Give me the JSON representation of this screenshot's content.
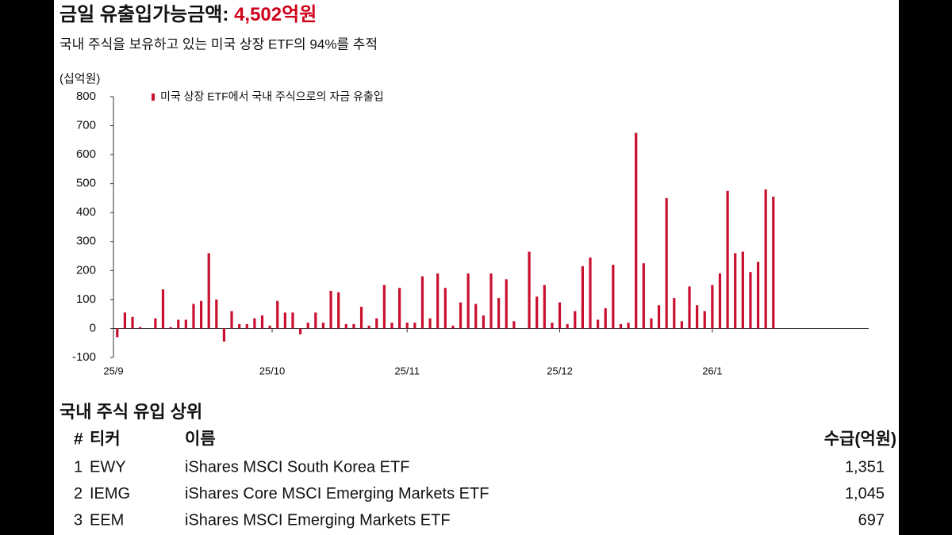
{
  "header": {
    "title": "금일 유출입가능금액: ",
    "highlight": "4,502억원",
    "subtitle": "국내 주식을 보유하고 있는 미국 상장 ETF의 94%를 추적"
  },
  "chart_data": {
    "type": "bar",
    "y_label": "(십억원)",
    "x": [
      0,
      1,
      2,
      3,
      5,
      6,
      7,
      8,
      9,
      10,
      11,
      12,
      13,
      14,
      15,
      16,
      17,
      18,
      19,
      20,
      21,
      22,
      23,
      24,
      25,
      26,
      27,
      28,
      29,
      30,
      31,
      32,
      33,
      34,
      35,
      36,
      37,
      38,
      39,
      40,
      41,
      42,
      43,
      44,
      45,
      46,
      47,
      48,
      49,
      50,
      51,
      52,
      54,
      55,
      56,
      57,
      58,
      59,
      60,
      61,
      62,
      63,
      64,
      65,
      66,
      67,
      68,
      69,
      70,
      71,
      72,
      73,
      74,
      75,
      76,
      77,
      78,
      79,
      80,
      81,
      82,
      83,
      84,
      85,
      86
    ],
    "series": [
      {
        "name": "미국 상장 ETF에서 국내 주식으로의 자금 유출입",
        "color": "#c8102e",
        "values": [
          -30,
          55,
          40,
          5,
          35,
          135,
          5,
          30,
          30,
          85,
          95,
          260,
          100,
          -45,
          60,
          15,
          15,
          35,
          45,
          10,
          95,
          55,
          55,
          -20,
          20,
          55,
          20,
          130,
          125,
          15,
          15,
          75,
          10,
          35,
          150,
          20,
          140,
          20,
          20,
          180,
          35,
          190,
          140,
          10,
          90,
          190,
          85,
          45,
          190,
          105,
          170,
          25,
          265,
          110,
          150,
          20,
          90,
          15,
          60,
          215,
          245,
          30,
          70,
          220,
          15,
          20,
          675,
          225,
          35,
          80,
          450,
          105,
          25,
          145,
          80,
          60,
          150,
          190,
          475,
          260,
          265,
          195,
          230,
          480,
          455
        ]
      }
    ],
    "xlim": [
      -0.5,
      98.5
    ],
    "xticks": [
      {
        "value": -0.5,
        "label": "25/9"
      },
      {
        "value": 20.3,
        "label": "25/10"
      },
      {
        "value": 38,
        "label": "25/11"
      },
      {
        "value": 58,
        "label": "25/12"
      },
      {
        "value": 78,
        "label": "26/1"
      }
    ],
    "ylim": [
      -100,
      800
    ],
    "yticks": [
      -100,
      0,
      100,
      200,
      300,
      400,
      500,
      600,
      700,
      800
    ]
  },
  "table": {
    "title": "국내 주식 유입 상위",
    "columns": [
      "#",
      "티커",
      "이름",
      "수급(억원)"
    ],
    "rows": [
      [
        "1",
        "EWY",
        "iShares MSCI South Korea ETF",
        "1,351"
      ],
      [
        "2",
        "IEMG",
        "iShares Core MSCI Emerging Markets ETF",
        "1,045"
      ],
      [
        "3",
        "EEM",
        "iShares MSCI Emerging Markets ETF",
        "697"
      ]
    ]
  }
}
